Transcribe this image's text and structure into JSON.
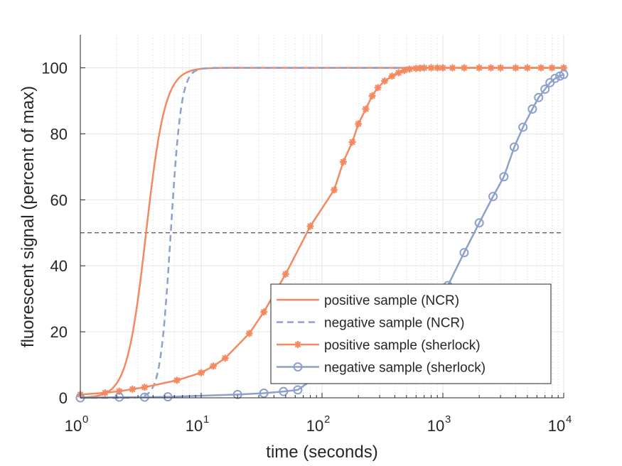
{
  "chart_data": {
    "type": "line",
    "title": "",
    "xlabel": "time (seconds)",
    "ylabel": "fluorescent signal (percent of max)",
    "xscale": "log",
    "xlim": [
      1,
      10000
    ],
    "ylim": [
      0,
      110
    ],
    "x_ticks": [
      {
        "base": "10",
        "exp": "0"
      },
      {
        "base": "10",
        "exp": "1"
      },
      {
        "base": "10",
        "exp": "2"
      },
      {
        "base": "10",
        "exp": "3"
      },
      {
        "base": "10",
        "exp": "4"
      }
    ],
    "y_ticks": [
      "0",
      "20",
      "40",
      "60",
      "80",
      "100"
    ],
    "grid": true,
    "legend_position": "bottom-right",
    "reference_line": {
      "y": 50,
      "style": "dashed",
      "color": "#262626"
    },
    "series": [
      {
        "name": "positive sample (NCR)",
        "color": "#F4895F",
        "style": "solid",
        "marker": "none",
        "model": {
          "kind": "sigmoid",
          "x50": 3.5,
          "slope": 5.5
        },
        "x": [],
        "y": []
      },
      {
        "name": "negative sample (NCR)",
        "color": "#8DA0CB",
        "style": "dashed",
        "marker": "none",
        "model": {
          "kind": "sigmoid",
          "x50": 5.6,
          "slope": 10.0
        },
        "x": [],
        "y": []
      },
      {
        "name": "positive sample (sherlock)",
        "color": "#F4895F",
        "style": "solid",
        "marker": "asterisk",
        "x": [
          1,
          1.6,
          2.1,
          2.7,
          3.4,
          6.3,
          10,
          12.6,
          15.8,
          25,
          33,
          50,
          80,
          126,
          150,
          178,
          200,
          230,
          260,
          290,
          330,
          380,
          430,
          480,
          530,
          600,
          650,
          700,
          800,
          900,
          1000,
          1200,
          1500,
          2000,
          2500,
          3000,
          4000,
          5000,
          6500,
          8000,
          10000
        ],
        "y": [
          1,
          1.5,
          2,
          2.6,
          3.2,
          5.3,
          7.6,
          9.6,
          12,
          19.5,
          26,
          37.5,
          52,
          63,
          71.5,
          77.5,
          83,
          87.5,
          91.5,
          94,
          96,
          97.5,
          98.5,
          99.2,
          99.6,
          99.8,
          99.9,
          100,
          100,
          100,
          100,
          100,
          100,
          100,
          100,
          100,
          100,
          100,
          100,
          100,
          100
        ]
      },
      {
        "name": "negative sample (sherlock)",
        "color": "#8DA0CB",
        "style": "solid",
        "marker": "circle",
        "x": [
          1,
          2.1,
          3.4,
          5.3,
          20,
          33,
          48,
          63,
          1100,
          1500,
          2000,
          2600,
          3200,
          3900,
          4600,
          5500,
          6200,
          7000,
          7700,
          8500,
          9300,
          10000
        ],
        "y": [
          0,
          0.2,
          0.2,
          0.3,
          1,
          1.4,
          1.9,
          2.4,
          34,
          44,
          53,
          61,
          67,
          76,
          82,
          87.5,
          91,
          93.5,
          95.5,
          96.8,
          97.5,
          98
        ]
      }
    ]
  }
}
